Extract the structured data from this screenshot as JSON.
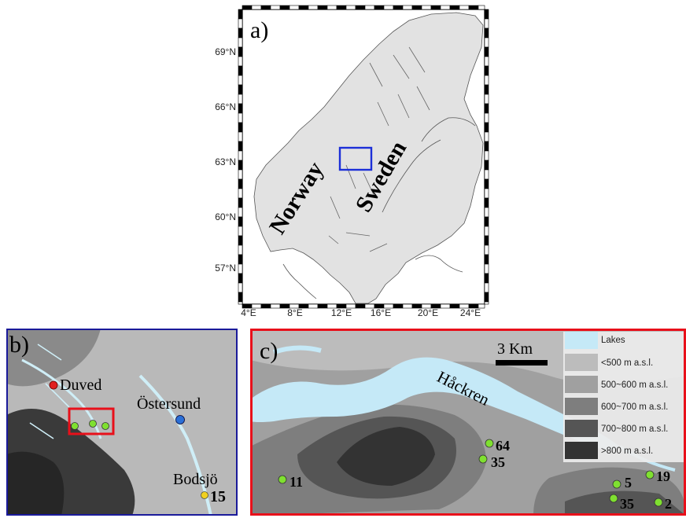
{
  "panel_a": {
    "label": "a)",
    "country_labels": [
      "Norway",
      "Sweden"
    ],
    "lat_ticks": [
      "69°N",
      "66°N",
      "63°N",
      "60°N",
      "57°N"
    ],
    "lon_ticks": [
      "4°E",
      "8°E",
      "12°E",
      "16°E",
      "20°E",
      "24°E"
    ],
    "inset_color": "#1c2fd8",
    "land_color": "#e2e2e2"
  },
  "panel_b": {
    "label": "b)",
    "frame_color": "#1a1a9a",
    "inset_color": "#e8101a",
    "places": [
      {
        "name": "Duved",
        "color": "#e02020"
      },
      {
        "name": "Östersund",
        "color": "#2a6fd6"
      },
      {
        "name": "Bodsjö",
        "color": "#f0d020",
        "value": "15"
      }
    ],
    "site_color": "#7fe030"
  },
  "panel_c": {
    "label": "c)",
    "frame_color": "#e8101a",
    "lake_name": "Håckren",
    "scale_bar": "3 Km",
    "sites": [
      "64",
      "35",
      "11",
      "5",
      "19",
      "35",
      "2"
    ],
    "site_color": "#7fe030",
    "legend": [
      {
        "label": "Lakes",
        "color": "#c5e9f7"
      },
      {
        "label": "<500 m a.s.l.",
        "color": "#bcbcbc"
      },
      {
        "label": "500~600 m a.s.l.",
        "color": "#a0a0a0"
      },
      {
        "label": "600~700 m a.s.l.",
        "color": "#7e7e7e"
      },
      {
        "label": "700~800 m a.s.l.",
        "color": "#555555"
      },
      {
        "label": ">800 m a.s.l.",
        "color": "#333333"
      }
    ]
  }
}
